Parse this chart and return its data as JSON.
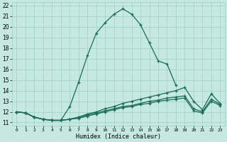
{
  "xlabel": "Humidex (Indice chaleur)",
  "ylabel": "",
  "bg_color": "#c5e8e0",
  "grid_color": "#9ecfc5",
  "line_color": "#1a6b5a",
  "xlim": [
    -0.5,
    23.5
  ],
  "ylim": [
    10.7,
    22.3
  ],
  "xticks": [
    0,
    1,
    2,
    3,
    4,
    5,
    6,
    7,
    8,
    9,
    10,
    11,
    12,
    13,
    14,
    15,
    16,
    17,
    18,
    19,
    20,
    21,
    22,
    23
  ],
  "yticks": [
    11,
    12,
    13,
    14,
    15,
    16,
    17,
    18,
    19,
    20,
    21,
    22
  ],
  "lines": [
    {
      "x": [
        0,
        1,
        2,
        3,
        4,
        5,
        6,
        7,
        8,
        9,
        10,
        11,
        12,
        13,
        14,
        15,
        16,
        17,
        18
      ],
      "y": [
        12.0,
        11.9,
        11.5,
        11.3,
        11.2,
        11.2,
        12.5,
        14.8,
        17.3,
        19.4,
        20.4,
        21.2,
        21.7,
        21.2,
        20.2,
        18.5,
        16.8,
        16.5,
        14.5
      ]
    },
    {
      "x": [
        0,
        1,
        2,
        3,
        4,
        5,
        6,
        7,
        8,
        9,
        10,
        11,
        12,
        13,
        14,
        15,
        16,
        17,
        18,
        19,
        20,
        21,
        22,
        23
      ],
      "y": [
        12.0,
        11.9,
        11.5,
        11.3,
        11.2,
        11.2,
        11.3,
        11.5,
        11.8,
        12.0,
        12.3,
        12.5,
        12.8,
        13.0,
        13.2,
        13.4,
        13.6,
        13.8,
        14.0,
        14.3,
        13.0,
        12.2,
        13.7,
        12.8
      ]
    },
    {
      "x": [
        0,
        1,
        2,
        3,
        4,
        5,
        6,
        7,
        8,
        9,
        10,
        11,
        12,
        13,
        14,
        15,
        16,
        17,
        18,
        19,
        20,
        21,
        22,
        23
      ],
      "y": [
        12.0,
        11.9,
        11.5,
        11.3,
        11.2,
        11.2,
        11.3,
        11.5,
        11.7,
        11.9,
        12.1,
        12.3,
        12.5,
        12.6,
        12.8,
        13.0,
        13.1,
        13.3,
        13.4,
        13.5,
        12.3,
        12.0,
        13.2,
        12.7
      ]
    },
    {
      "x": [
        0,
        1,
        2,
        3,
        4,
        5,
        6,
        7,
        8,
        9,
        10,
        11,
        12,
        13,
        14,
        15,
        16,
        17,
        18,
        19,
        20,
        21,
        22,
        23
      ],
      "y": [
        12.0,
        11.9,
        11.5,
        11.3,
        11.2,
        11.2,
        11.3,
        11.4,
        11.6,
        11.8,
        12.0,
        12.2,
        12.4,
        12.5,
        12.7,
        12.8,
        13.0,
        13.1,
        13.2,
        13.3,
        12.1,
        11.9,
        13.0,
        12.6
      ]
    }
  ]
}
